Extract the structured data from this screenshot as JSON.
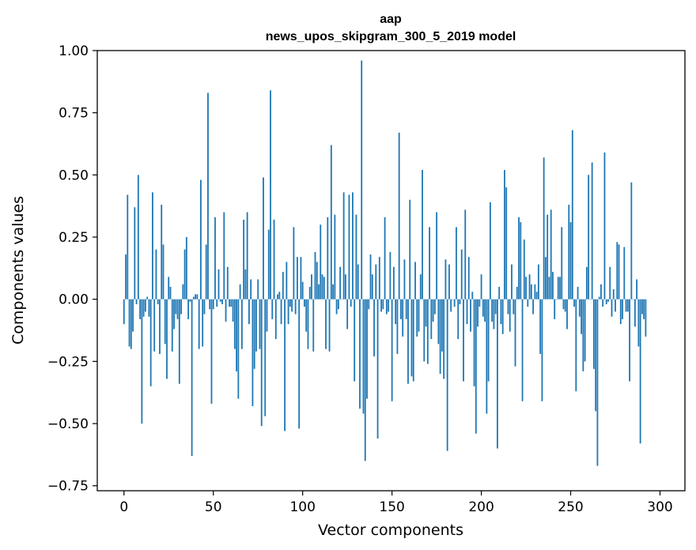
{
  "chart_data": {
    "type": "bar",
    "title": "aap",
    "subtitle": "news_upos_skipgram_300_5_2019 model",
    "xlabel": "Vector components",
    "ylabel": "Components values",
    "xlim": [
      -14.95,
      313.95
    ],
    "ylim": [
      -0.77,
      1.0
    ],
    "x_ticks": [
      0,
      50,
      100,
      150,
      200,
      250,
      300
    ],
    "y_ticks": [
      -0.75,
      -0.5,
      -0.25,
      0.0,
      0.25,
      0.5,
      0.75,
      1.0
    ],
    "x_tick_labels": [
      "0",
      "50",
      "100",
      "150",
      "200",
      "250",
      "300"
    ],
    "y_tick_labels": [
      "−0.75",
      "−0.50",
      "−0.25",
      "0.00",
      "0.25",
      "0.50",
      "0.75",
      "1.00"
    ],
    "bar_color": "#1f77b4",
    "grid": false,
    "values": [
      -0.1,
      0.18,
      0.42,
      -0.19,
      -0.2,
      -0.13,
      0.37,
      -0.02,
      0.5,
      -0.08,
      -0.5,
      -0.07,
      -0.05,
      0.01,
      -0.07,
      -0.35,
      0.43,
      -0.21,
      0.2,
      -0.02,
      -0.22,
      0.38,
      0.22,
      -0.18,
      -0.32,
      0.09,
      0.05,
      -0.21,
      -0.12,
      -0.06,
      -0.08,
      -0.34,
      -0.06,
      0.06,
      0.2,
      0.25,
      -0.08,
      -0.01,
      -0.63,
      0.01,
      0.02,
      0.02,
      -0.2,
      0.48,
      -0.19,
      -0.06,
      0.22,
      0.83,
      -0.04,
      -0.42,
      -0.04,
      0.33,
      -0.03,
      0.12,
      -0.01,
      -0.02,
      0.35,
      -0.09,
      0.13,
      -0.03,
      -0.03,
      -0.09,
      -0.2,
      -0.29,
      -0.4,
      0.06,
      -0.2,
      0.32,
      0.12,
      0.35,
      -0.1,
      0.08,
      -0.43,
      -0.28,
      -0.21,
      0.08,
      -0.2,
      -0.51,
      0.49,
      -0.47,
      -0.13,
      0.28,
      0.84,
      -0.08,
      0.32,
      -0.16,
      0.02,
      0.03,
      -0.1,
      0.11,
      -0.53,
      0.15,
      -0.1,
      -0.03,
      -0.05,
      0.29,
      -0.06,
      0.17,
      -0.52,
      0.17,
      0.07,
      -0.03,
      -0.13,
      -0.2,
      0.05,
      0.1,
      -0.21,
      0.19,
      0.15,
      0.06,
      0.3,
      0.1,
      0.09,
      -0.2,
      0.33,
      -0.21,
      0.62,
      0.06,
      0.34,
      -0.06,
      -0.04,
      0.13,
      0.0,
      0.43,
      0.1,
      -0.12,
      0.42,
      -0.03,
      0.43,
      -0.33,
      0.34,
      0.14,
      -0.44,
      0.96,
      -0.46,
      -0.65,
      -0.4,
      -0.04,
      0.18,
      0.1,
      -0.23,
      0.14,
      -0.56,
      0.17,
      -0.05,
      -0.04,
      0.33,
      -0.06,
      -0.05,
      0.19,
      -0.41,
      0.13,
      -0.1,
      -0.22,
      0.67,
      -0.08,
      -0.15,
      0.16,
      -0.08,
      -0.34,
      0.4,
      -0.31,
      -0.33,
      0.15,
      -0.15,
      -0.13,
      0.1,
      0.52,
      -0.25,
      -0.11,
      -0.26,
      0.29,
      -0.16,
      -0.09,
      -0.06,
      0.35,
      -0.18,
      -0.3,
      -0.21,
      -0.32,
      0.16,
      -0.61,
      0.14,
      -0.05,
      0.0,
      -0.03,
      0.29,
      -0.16,
      -0.02,
      0.2,
      -0.33,
      0.36,
      -0.1,
      0.17,
      -0.13,
      0.03,
      -0.35,
      -0.54,
      -0.11,
      -0.03,
      0.1,
      -0.07,
      -0.09,
      -0.46,
      -0.33,
      0.39,
      -0.09,
      -0.12,
      -0.06,
      -0.6,
      0.05,
      -0.1,
      -0.14,
      0.52,
      0.45,
      -0.06,
      -0.13,
      0.14,
      -0.06,
      -0.27,
      0.05,
      0.33,
      0.31,
      -0.41,
      0.24,
      0.09,
      -0.03,
      0.1,
      0.06,
      -0.06,
      0.06,
      0.03,
      0.14,
      -0.22,
      -0.41,
      0.57,
      0.17,
      0.34,
      0.09,
      0.36,
      0.11,
      -0.08,
      0.0,
      0.09,
      0.09,
      0.29,
      -0.04,
      -0.05,
      -0.12,
      0.38,
      0.31,
      0.68,
      -0.03,
      -0.37,
      0.05,
      -0.07,
      -0.14,
      -0.29,
      -0.25,
      0.13,
      0.5,
      0.0,
      0.55,
      -0.28,
      -0.45,
      -0.67,
      0.01,
      0.06,
      -0.03,
      0.59,
      -0.02,
      -0.01,
      0.13,
      -0.07,
      0.04,
      -0.05,
      0.23,
      0.22,
      -0.1,
      -0.08,
      0.21,
      -0.05,
      -0.05,
      -0.33,
      0.47,
      0.0,
      -0.11,
      0.08,
      -0.19,
      -0.58,
      -0.06,
      -0.08,
      -0.15
    ]
  }
}
